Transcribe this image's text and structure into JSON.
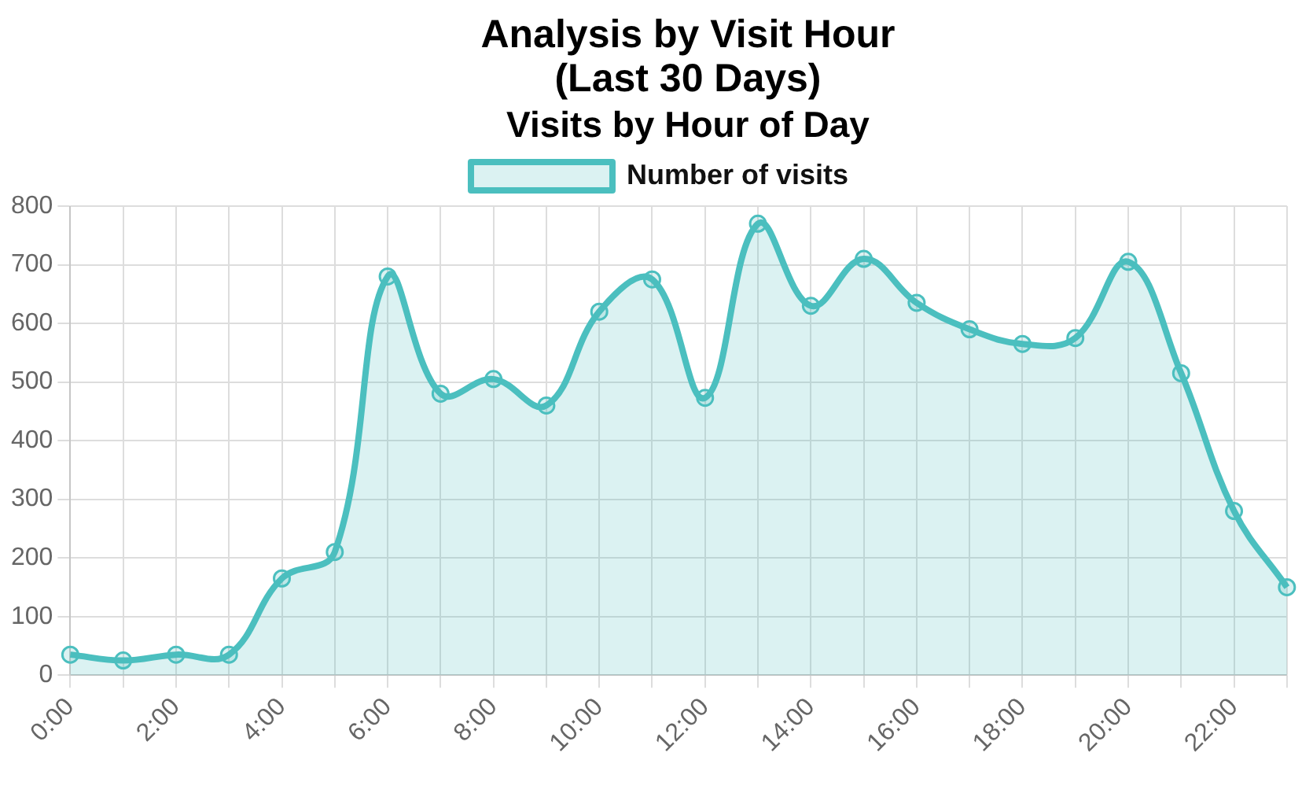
{
  "chart_data": {
    "type": "area",
    "title": "Analysis by Visit Hour\n(Last 30 Days)",
    "subtitle": "Visits by Hour of Day",
    "categories": [
      "0:00",
      null,
      "2:00",
      null,
      "4:00",
      null,
      "6:00",
      null,
      "8:00",
      null,
      "10:00",
      null,
      "12:00",
      null,
      "14:00",
      null,
      "16:00",
      null,
      "18:00",
      null,
      "20:00",
      null,
      "22:00",
      null
    ],
    "series": [
      {
        "name": "Number of visits",
        "color": "#4bbfbf",
        "values": [
          35,
          25,
          35,
          35,
          165,
          210,
          680,
          480,
          505,
          460,
          620,
          675,
          473,
          770,
          630,
          710,
          635,
          590,
          565,
          575,
          705,
          515,
          280,
          150
        ]
      }
    ],
    "ylim": [
      0,
      800
    ],
    "yticks": [
      0,
      100,
      200,
      300,
      400,
      500,
      600,
      700,
      800
    ],
    "grid": true,
    "legend": "top",
    "marker": "circle",
    "line_style": "solid"
  }
}
